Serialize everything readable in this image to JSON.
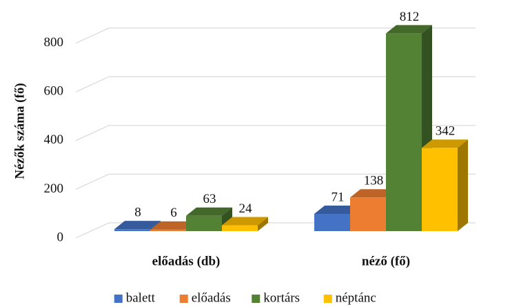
{
  "chart_data": {
    "type": "bar3d",
    "y_label": "Nézők száma (fő)",
    "categories": [
      "előadás (db)",
      "néző (fő)"
    ],
    "series": [
      {
        "name": "balett",
        "color": "#4472c4",
        "values": [
          8,
          71
        ]
      },
      {
        "name": "előadás",
        "color": "#ed7d31",
        "values": [
          6,
          138
        ]
      },
      {
        "name": "kortárs",
        "color": "#548235",
        "values": [
          63,
          812
        ]
      },
      {
        "name": "néptánc",
        "color": "#ffc000",
        "values": [
          24,
          342
        ]
      }
    ],
    "ylim": [
      0,
      850
    ],
    "yticks": [
      0,
      200,
      400,
      600,
      800
    ],
    "grid": true,
    "legend": "bottom"
  }
}
